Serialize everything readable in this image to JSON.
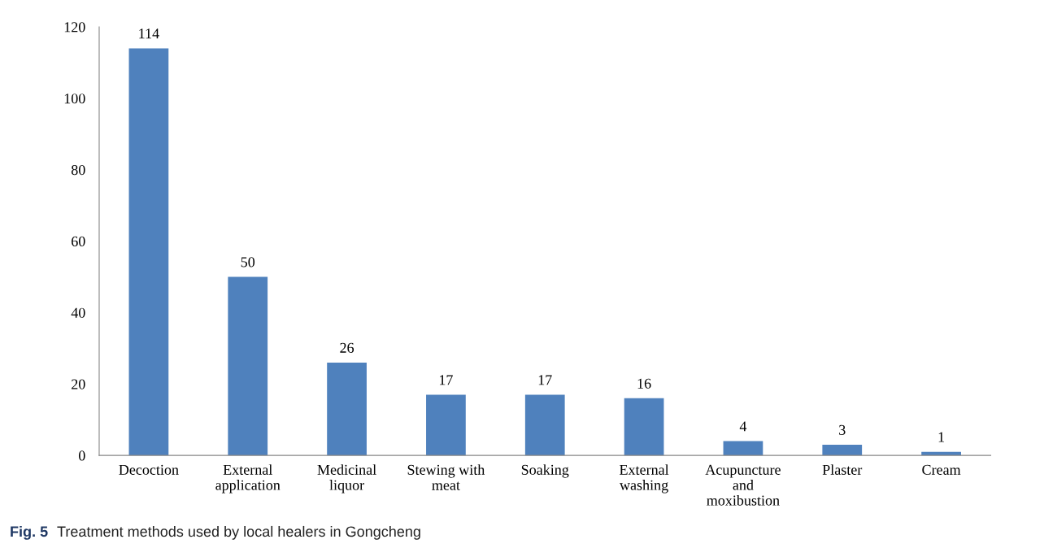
{
  "chart_data": {
    "type": "bar",
    "categories": [
      "Decoction",
      "External\napplication",
      "Medicinal\nliquor",
      "Stewing with\nmeat",
      "Soaking",
      "External\nwashing",
      "Acupuncture\nand\nmoxibustion",
      "Plaster",
      "Cream"
    ],
    "values": [
      114,
      50,
      26,
      17,
      17,
      16,
      4,
      3,
      1
    ],
    "color": "#4f81bd",
    "ylim": [
      0,
      120
    ],
    "yticks": [
      0,
      20,
      40,
      60,
      80,
      100,
      120
    ],
    "data_labels": true,
    "grid": false,
    "legend": false,
    "annotations": [
      "Fig. 5",
      "Treatment methods used by local healers in Gongcheng"
    ]
  }
}
